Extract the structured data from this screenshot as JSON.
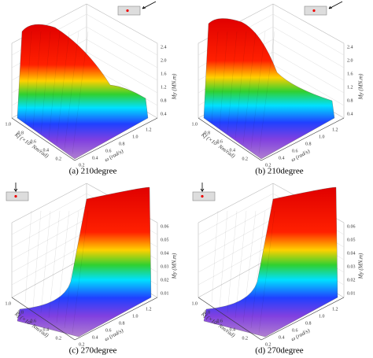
{
  "panels": [
    {
      "caption": "(a) 210degree",
      "z_label": "My (MN.m)",
      "x_label": "Kf (×10⁷ Nm/rad)",
      "y_label": "ω (rad/s)",
      "z_ticks": [
        "2.4",
        "2.0",
        "1.6",
        "1.2",
        "0.8",
        "0.4"
      ],
      "x_ticks": [
        "1.0",
        "0.8",
        "0.6",
        "0.4",
        "0.2"
      ],
      "y_ticks": [
        "0.2",
        "0.4",
        "0.6",
        "0.8",
        "1.0",
        "1.2"
      ]
    },
    {
      "caption": "(b) 210degree",
      "z_label": "My (MN.m)",
      "x_label": "Kf (×10⁷ Nm/rad)",
      "y_label": "ω (rad/s)",
      "z_ticks": [
        "2.4",
        "2.0",
        "1.6",
        "1.2",
        "0.8",
        "0.4"
      ],
      "x_ticks": [
        "1.0",
        "0.8",
        "0.6",
        "0.4",
        "0.2"
      ],
      "y_ticks": [
        "0.2",
        "0.4",
        "0.6",
        "0.8",
        "1.0",
        "1.2"
      ]
    },
    {
      "caption": "(c) 270degree",
      "z_label": "My (MN.m)",
      "x_label": "Kf (×10⁷ Nm/rad)",
      "y_label": "ω (rad/s)",
      "z_ticks": [
        "0.06",
        "0.05",
        "0.04",
        "0.03",
        "0.02",
        "0.01"
      ],
      "x_ticks": [
        "1.0",
        "0.8",
        "0.6",
        "0.4",
        "0.2"
      ],
      "y_ticks": [
        "0.2",
        "0.4",
        "0.6",
        "0.8",
        "1.0",
        "1.2"
      ]
    },
    {
      "caption": "(d) 270degree",
      "z_label": "My (MN.m)",
      "x_label": "Kf (×10⁷ Nm/rad)",
      "y_label": "ω (rad/s)",
      "z_ticks": [
        "0.06",
        "0.05",
        "0.04",
        "0.03",
        "0.02",
        "0.01"
      ],
      "x_ticks": [
        "1.0",
        "0.8",
        "0.6",
        "0.4",
        "0.2"
      ],
      "y_ticks": [
        "0.2",
        "0.4",
        "0.6",
        "0.8",
        "1.0",
        "1.2"
      ]
    }
  ]
}
